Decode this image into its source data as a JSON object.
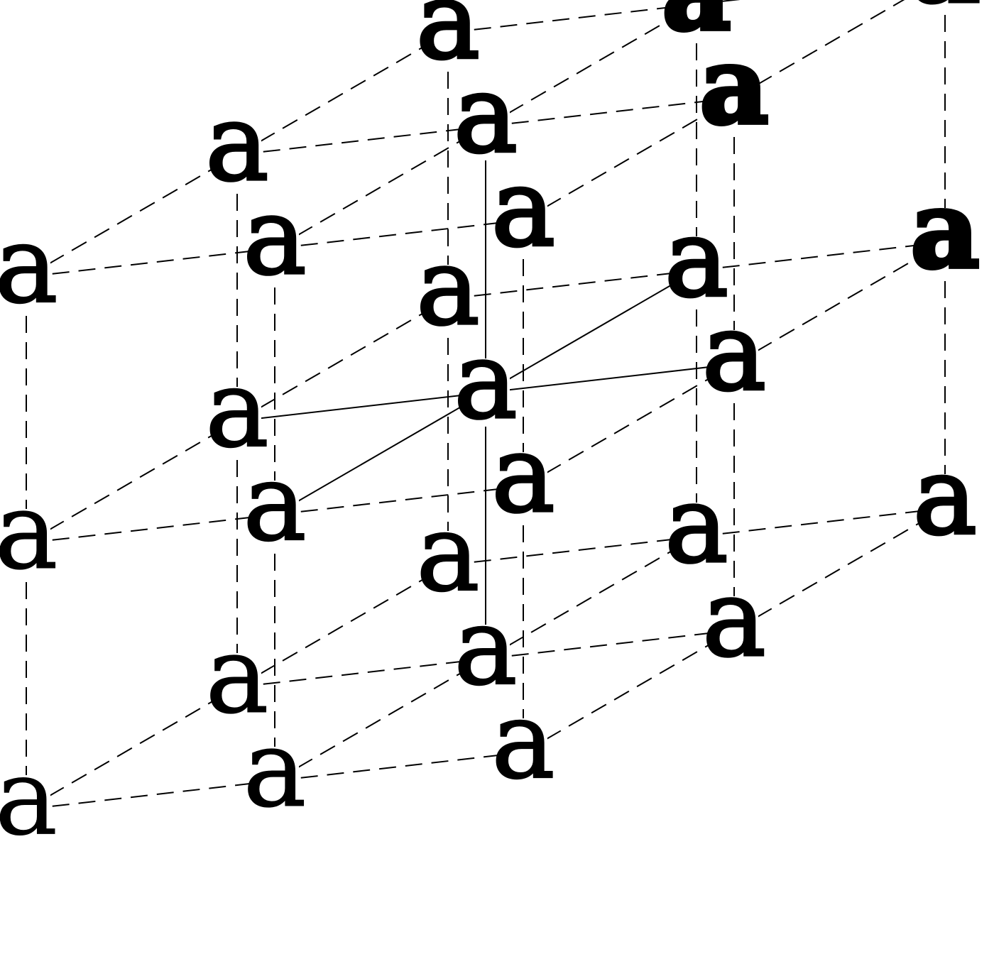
{
  "diagram": {
    "glyph": "a",
    "letters": [
      {
        "id": "n000",
        "text": "a",
        "weight": 100
      },
      {
        "id": "n001",
        "text": "a",
        "weight": 200
      },
      {
        "id": "n002",
        "text": "a",
        "weight": 300
      },
      {
        "id": "n010",
        "text": "a",
        "weight": 200
      },
      {
        "id": "n011",
        "text": "a",
        "weight": 300
      },
      {
        "id": "n012",
        "text": "a",
        "weight": 400
      },
      {
        "id": "n020",
        "text": "a",
        "weight": 300
      },
      {
        "id": "n021",
        "text": "a",
        "weight": 400
      },
      {
        "id": "n022",
        "text": "a",
        "weight": 500
      },
      {
        "id": "n100",
        "text": "a",
        "weight": 200
      },
      {
        "id": "n101",
        "text": "a",
        "weight": 300
      },
      {
        "id": "n102",
        "text": "a",
        "weight": 400
      },
      {
        "id": "n110",
        "text": "a",
        "weight": 300
      },
      {
        "id": "n111",
        "text": "a",
        "weight": 400
      },
      {
        "id": "n112",
        "text": "a",
        "weight": 500
      },
      {
        "id": "n120",
        "text": "a",
        "weight": 400
      },
      {
        "id": "n121",
        "text": "a",
        "weight": 500
      },
      {
        "id": "n122",
        "text": "a",
        "weight": 600
      },
      {
        "id": "n200",
        "text": "a",
        "weight": 300
      },
      {
        "id": "n201",
        "text": "a",
        "weight": 400
      },
      {
        "id": "n202",
        "text": "a",
        "weight": 500
      },
      {
        "id": "n210",
        "text": "a",
        "weight": 400
      },
      {
        "id": "n211",
        "text": "a",
        "weight": 500
      },
      {
        "id": "n212",
        "text": "a",
        "weight": 600
      },
      {
        "id": "n220",
        "text": "a",
        "weight": 500
      },
      {
        "id": "n221",
        "text": "a",
        "weight": 600
      },
      {
        "id": "n222",
        "text": "a",
        "weight": 700
      }
    ],
    "axes_through_center": [
      "x",
      "y",
      "z"
    ],
    "edge_style": "dashed",
    "center_axes_style": "solid",
    "stroke_color": "#000000"
  }
}
